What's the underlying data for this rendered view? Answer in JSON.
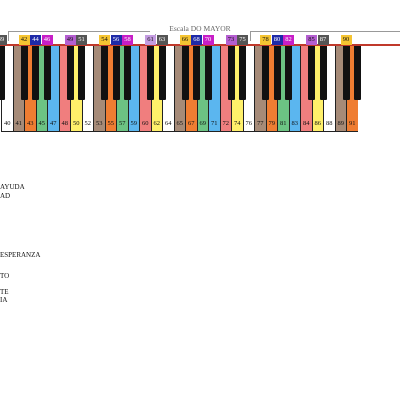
{
  "header": {
    "scale_label": "Escala DO MAYOR"
  },
  "colors": {
    "brown": "#a68b78",
    "orange": "#ef7d32",
    "green": "#6cc383",
    "blue": "#5bb6ef",
    "red": "#f07e7e",
    "yellow": "#fff06a",
    "white": "#ffffff",
    "black": "#111111",
    "chip_gold": "#f5c431",
    "chip_blue": "#1e2aa8",
    "chip_purple": "#b45ed0",
    "chip_magenta": "#c71ec7",
    "chip_gray": "#555555",
    "chip_lilac": "#c39be0"
  },
  "keyboard": {
    "white_keys": [
      {
        "number": "40",
        "color": "white"
      },
      {
        "number": "41",
        "color": "brown"
      },
      {
        "number": "43",
        "color": "orange"
      },
      {
        "number": "45",
        "color": "green"
      },
      {
        "number": "47",
        "color": "blue"
      },
      {
        "number": "48",
        "color": "red"
      },
      {
        "number": "50",
        "color": "yellow"
      },
      {
        "number": "52",
        "color": "white"
      },
      {
        "number": "53",
        "color": "brown"
      },
      {
        "number": "55",
        "color": "orange"
      },
      {
        "number": "57",
        "color": "green"
      },
      {
        "number": "59",
        "color": "blue"
      },
      {
        "number": "60",
        "color": "red"
      },
      {
        "number": "62",
        "color": "yellow"
      },
      {
        "number": "64",
        "color": "white"
      },
      {
        "number": "65",
        "color": "brown"
      },
      {
        "number": "67",
        "color": "orange"
      },
      {
        "number": "69",
        "color": "green"
      },
      {
        "number": "71",
        "color": "blue"
      },
      {
        "number": "72",
        "color": "red"
      },
      {
        "number": "74",
        "color": "yellow"
      },
      {
        "number": "76",
        "color": "white"
      },
      {
        "number": "77",
        "color": "brown"
      },
      {
        "number": "79",
        "color": "orange"
      },
      {
        "number": "81",
        "color": "green"
      },
      {
        "number": "83",
        "color": "blue"
      },
      {
        "number": "84",
        "color": "red"
      },
      {
        "number": "86",
        "color": "yellow"
      },
      {
        "number": "88",
        "color": "white"
      },
      {
        "number": "89",
        "color": "brown"
      },
      {
        "number": "91",
        "color": "orange"
      }
    ],
    "top_labels": [
      {
        "number": "39",
        "color": "chip_gray"
      },
      {
        "number": "42",
        "color": "chip_gold"
      },
      {
        "number": "44",
        "color": "chip_blue"
      },
      {
        "number": "46",
        "color": "chip_magenta"
      },
      {
        "number": "49",
        "color": "chip_purple"
      },
      {
        "number": "51",
        "color": "chip_gray"
      },
      {
        "number": "54",
        "color": "chip_gold"
      },
      {
        "number": "56",
        "color": "chip_blue"
      },
      {
        "number": "58",
        "color": "chip_magenta"
      },
      {
        "number": "61",
        "color": "chip_lilac"
      },
      {
        "number": "63",
        "color": "chip_gray"
      },
      {
        "number": "66",
        "color": "chip_gold"
      },
      {
        "number": "68",
        "color": "chip_blue"
      },
      {
        "number": "70",
        "color": "chip_magenta"
      },
      {
        "number": "73",
        "color": "chip_purple"
      },
      {
        "number": "75",
        "color": "chip_gray"
      },
      {
        "number": "78",
        "color": "chip_gold"
      },
      {
        "number": "80",
        "color": "chip_blue"
      },
      {
        "number": "82",
        "color": "chip_magenta"
      },
      {
        "number": "85",
        "color": "chip_purple"
      },
      {
        "number": "87",
        "color": "chip_gray"
      },
      {
        "number": "90",
        "color": "chip_gold"
      }
    ]
  },
  "sidebar": {
    "items": [
      "AYUDA",
      "AD",
      "ESPERANZA",
      "TO",
      "TE",
      "IA"
    ]
  }
}
